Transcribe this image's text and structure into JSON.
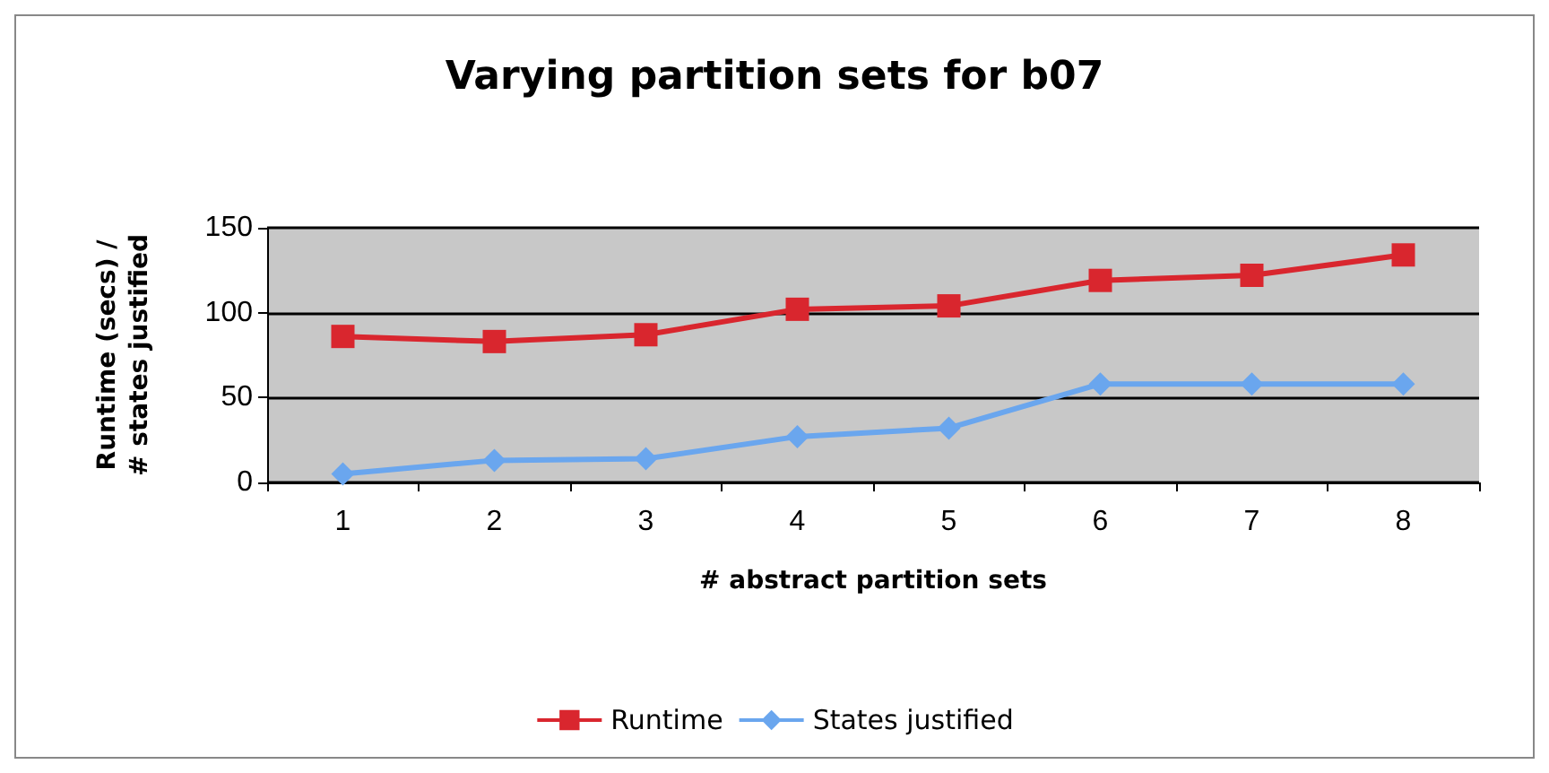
{
  "chart_data": {
    "type": "line",
    "title": "Varying partition sets for b07",
    "xlabel": "# abstract partition sets",
    "ylabel": "Runtime (secs) /\n# states justified",
    "categories": [
      "1",
      "2",
      "3",
      "4",
      "5",
      "6",
      "7",
      "8"
    ],
    "series": [
      {
        "name": "Runtime",
        "color": "#d9262e",
        "marker": "square",
        "values": [
          86,
          83,
          87,
          102,
          104,
          119,
          122,
          134
        ]
      },
      {
        "name": "States justified",
        "color": "#6aa6ee",
        "marker": "diamond",
        "values": [
          5,
          13,
          14,
          27,
          32,
          58,
          58,
          58
        ]
      }
    ],
    "ylim": [
      0,
      150
    ],
    "yticks": [
      0,
      50,
      100,
      150
    ],
    "grid": "y",
    "legend": "bottom"
  }
}
